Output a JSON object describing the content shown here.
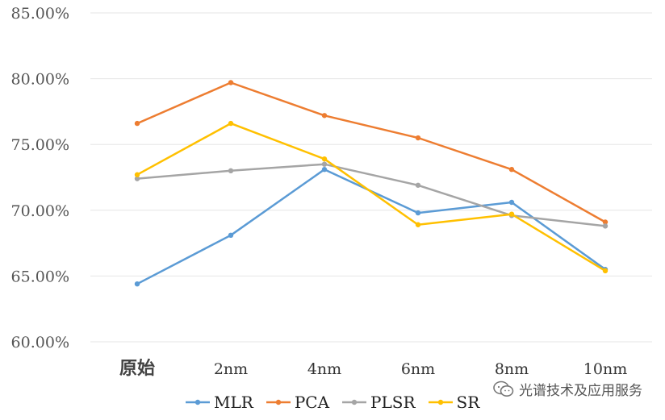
{
  "chart_data": {
    "type": "line",
    "categories": [
      "原始",
      "2nm",
      "4nm",
      "6nm",
      "8nm",
      "10nm"
    ],
    "y_ticks": [
      "60.00%",
      "65.00%",
      "70.00%",
      "75.00%",
      "80.00%",
      "85.00%"
    ],
    "ylim": [
      0.6,
      0.85
    ],
    "grid": true,
    "legend_position": "bottom",
    "series": [
      {
        "name": "MLR",
        "color": "#5B9BD5",
        "values": [
          0.644,
          0.681,
          0.731,
          0.698,
          0.706,
          0.655
        ]
      },
      {
        "name": "PCA",
        "color": "#ED7D31",
        "values": [
          0.766,
          0.797,
          0.772,
          0.755,
          0.731,
          0.691
        ]
      },
      {
        "name": "PLSR",
        "color": "#A5A5A5",
        "values": [
          0.724,
          0.73,
          0.735,
          0.719,
          0.696,
          0.688
        ]
      },
      {
        "name": "SR",
        "color": "#FFC000",
        "values": [
          0.727,
          0.766,
          0.739,
          0.689,
          0.697,
          0.654
        ]
      }
    ]
  },
  "watermark": {
    "icon": "wechat-icon",
    "text": "光谱技术及应用服务"
  }
}
